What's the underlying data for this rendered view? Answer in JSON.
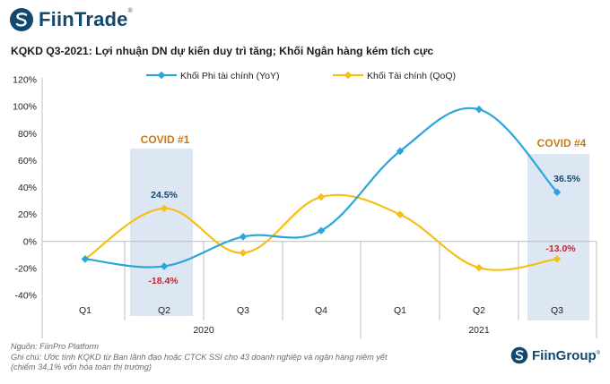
{
  "header": {
    "logo_text": "FiinTrade",
    "logo_mark": "®",
    "title": "KQKD Q3-2021: Lợi nhuận DN dự kiến duy trì tăng; Khối Ngân hàng kém tích cực"
  },
  "chart_data": {
    "type": "line",
    "categories": [
      "Q1",
      "Q2",
      "Q3",
      "Q4",
      "Q1",
      "Q2",
      "Q3"
    ],
    "groups": [
      {
        "label": "2020",
        "from": 0,
        "to": 3
      },
      {
        "label": "2021",
        "from": 4,
        "to": 6
      }
    ],
    "series": [
      {
        "name": "Khối Phi tài chính (YoY)",
        "color": "#2aa6dc",
        "values": [
          -13,
          -18.4,
          3.5,
          8,
          67,
          98,
          36.5
        ]
      },
      {
        "name": "Khối Tài chính (QoQ)",
        "color": "#f5bf17",
        "values": [
          -13,
          24.5,
          -8.5,
          33,
          20,
          -19.5,
          -13.0
        ]
      }
    ],
    "ylim": [
      -40,
      120
    ],
    "yticks": [
      -40,
      -20,
      0,
      20,
      40,
      60,
      80,
      100,
      120
    ],
    "ytick_labels": [
      "-40%",
      "-20%",
      "0%",
      "20%",
      "40%",
      "60%",
      "80%",
      "100%",
      "120%"
    ],
    "legend_position": "top",
    "grid": false,
    "data_labels": [
      {
        "text": "24.5%",
        "color": "#13486e"
      },
      {
        "text": "-18.4%",
        "color": "#c0272d"
      },
      {
        "text": "36.5%",
        "color": "#13486e"
      },
      {
        "text": "-13.0%",
        "color": "#c0272d"
      }
    ],
    "annotations": [
      {
        "text": "COVID #1",
        "color": "#c97a1e"
      },
      {
        "text": "COVID #4",
        "color": "#c97a1e"
      }
    ]
  },
  "footer": {
    "source": "Nguồn: FiinPro Platform",
    "note_line1": "Ghi chú: Ước tính KQKD từ Ban lãnh đạo hoặc CTCK SSI cho 43 doanh nghiệp và ngân hàng niêm yết",
    "note_line2": "(chiếm 34,1% vốn hóa toàn thị trường)",
    "brand": "FiinGroup",
    "brand_mark": "®"
  }
}
